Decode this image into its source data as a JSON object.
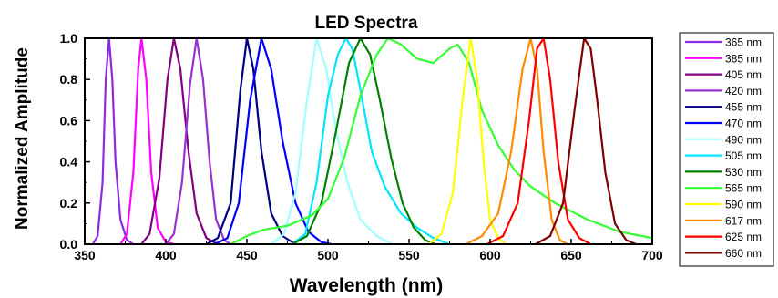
{
  "chart_data": {
    "type": "line",
    "title": "LED Spectra",
    "xlabel": "Wavelength (nm)",
    "ylabel": "Normalized Amplitude",
    "xlim": [
      350,
      700
    ],
    "ylim": [
      0.0,
      1.0
    ],
    "x_ticks": [
      "350",
      "400",
      "450",
      "500",
      "550",
      "600",
      "650",
      "700"
    ],
    "y_ticks": [
      "0.0",
      "0.2",
      "0.4",
      "0.6",
      "0.8",
      "1.0"
    ],
    "grid": false,
    "legend_position": "right, outside plot",
    "series": [
      {
        "name": "365 nm",
        "color": "#8a2be2",
        "points": [
          [
            355,
            0
          ],
          [
            358,
            0.04
          ],
          [
            361,
            0.3
          ],
          [
            363,
            0.8
          ],
          [
            365,
            1.0
          ],
          [
            367,
            0.8
          ],
          [
            369,
            0.4
          ],
          [
            372,
            0.12
          ],
          [
            376,
            0.02
          ],
          [
            380,
            0
          ]
        ]
      },
      {
        "name": "385 nm",
        "color": "#ff00ff",
        "points": [
          [
            372,
            0
          ],
          [
            376,
            0.05
          ],
          [
            380,
            0.35
          ],
          [
            383,
            0.85
          ],
          [
            385,
            1.0
          ],
          [
            388,
            0.8
          ],
          [
            391,
            0.35
          ],
          [
            395,
            0.08
          ],
          [
            400,
            0.01
          ],
          [
            405,
            0
          ]
        ]
      },
      {
        "name": "405 nm",
        "color": "#800080",
        "points": [
          [
            385,
            0
          ],
          [
            390,
            0.05
          ],
          [
            396,
            0.32
          ],
          [
            401,
            0.8
          ],
          [
            405,
            1.0
          ],
          [
            409,
            0.85
          ],
          [
            414,
            0.45
          ],
          [
            419,
            0.15
          ],
          [
            425,
            0.03
          ],
          [
            432,
            0
          ]
        ]
      },
      {
        "name": "420 nm",
        "color": "#9932cc",
        "points": [
          [
            400,
            0
          ],
          [
            405,
            0.05
          ],
          [
            410,
            0.3
          ],
          [
            415,
            0.78
          ],
          [
            419,
            1.0
          ],
          [
            423,
            0.8
          ],
          [
            427,
            0.4
          ],
          [
            431,
            0.12
          ],
          [
            436,
            0.02
          ],
          [
            440,
            0
          ]
        ]
      },
      {
        "name": "455 nm",
        "color": "#000080",
        "points": [
          [
            425,
            0
          ],
          [
            432,
            0.03
          ],
          [
            440,
            0.2
          ],
          [
            446,
            0.75
          ],
          [
            450,
            1.0
          ],
          [
            454,
            0.85
          ],
          [
            459,
            0.45
          ],
          [
            465,
            0.15
          ],
          [
            472,
            0.04
          ],
          [
            480,
            0
          ]
        ]
      },
      {
        "name": "470 nm",
        "color": "#0000ff",
        "points": [
          [
            430,
            0
          ],
          [
            438,
            0.03
          ],
          [
            445,
            0.2
          ],
          [
            452,
            0.7
          ],
          [
            459,
            1.0
          ],
          [
            465,
            0.85
          ],
          [
            472,
            0.5
          ],
          [
            480,
            0.2
          ],
          [
            488,
            0.06
          ],
          [
            496,
            0.01
          ],
          [
            502,
            0
          ]
        ]
      },
      {
        "name": "490 nm",
        "color": "#a0ffff",
        "points": [
          [
            465,
            0
          ],
          [
            473,
            0.05
          ],
          [
            480,
            0.25
          ],
          [
            487,
            0.7
          ],
          [
            493,
            1.0
          ],
          [
            499,
            0.85
          ],
          [
            505,
            0.55
          ],
          [
            512,
            0.3
          ],
          [
            520,
            0.12
          ],
          [
            530,
            0.04
          ],
          [
            540,
            0
          ]
        ]
      },
      {
        "name": "505 nm",
        "color": "#00e5ff",
        "points": [
          [
            478,
            0
          ],
          [
            486,
            0.05
          ],
          [
            493,
            0.3
          ],
          [
            500,
            0.72
          ],
          [
            506,
            0.92
          ],
          [
            511,
            1.0
          ],
          [
            515,
            0.95
          ],
          [
            520,
            0.75
          ],
          [
            527,
            0.45
          ],
          [
            535,
            0.28
          ],
          [
            545,
            0.15
          ],
          [
            555,
            0.08
          ],
          [
            565,
            0.03
          ],
          [
            575,
            0
          ]
        ]
      },
      {
        "name": "530 nm",
        "color": "#008000",
        "points": [
          [
            478,
            0
          ],
          [
            487,
            0.04
          ],
          [
            496,
            0.2
          ],
          [
            505,
            0.55
          ],
          [
            513,
            0.88
          ],
          [
            520,
            1.0
          ],
          [
            526,
            0.92
          ],
          [
            532,
            0.7
          ],
          [
            539,
            0.42
          ],
          [
            546,
            0.2
          ],
          [
            553,
            0.08
          ],
          [
            560,
            0.02
          ],
          [
            566,
            0
          ]
        ]
      },
      {
        "name": "565 nm",
        "color": "#33ff33",
        "points": [
          [
            440,
            0
          ],
          [
            450,
            0.04
          ],
          [
            460,
            0.07
          ],
          [
            475,
            0.09
          ],
          [
            490,
            0.14
          ],
          [
            500,
            0.22
          ],
          [
            510,
            0.42
          ],
          [
            520,
            0.72
          ],
          [
            530,
            0.92
          ],
          [
            537,
            1.0
          ],
          [
            545,
            0.97
          ],
          [
            555,
            0.9
          ],
          [
            565,
            0.88
          ],
          [
            575,
            0.95
          ],
          [
            580,
            0.97
          ],
          [
            587,
            0.88
          ],
          [
            595,
            0.65
          ],
          [
            605,
            0.48
          ],
          [
            615,
            0.36
          ],
          [
            625,
            0.28
          ],
          [
            640,
            0.2
          ],
          [
            660,
            0.12
          ],
          [
            680,
            0.06
          ],
          [
            700,
            0.03
          ]
        ]
      },
      {
        "name": "590 nm",
        "color": "#ffff00",
        "points": [
          [
            562,
            0
          ],
          [
            570,
            0.05
          ],
          [
            577,
            0.25
          ],
          [
            583,
            0.7
          ],
          [
            588,
            1.0
          ],
          [
            592,
            0.8
          ],
          [
            596,
            0.4
          ],
          [
            600,
            0.12
          ],
          [
            605,
            0.03
          ],
          [
            610,
            0
          ]
        ]
      },
      {
        "name": "617 nm",
        "color": "#ff8c00",
        "points": [
          [
            585,
            0
          ],
          [
            595,
            0.04
          ],
          [
            605,
            0.15
          ],
          [
            613,
            0.45
          ],
          [
            620,
            0.85
          ],
          [
            625,
            1.0
          ],
          [
            629,
            0.85
          ],
          [
            633,
            0.45
          ],
          [
            638,
            0.12
          ],
          [
            643,
            0.02
          ],
          [
            648,
            0
          ]
        ]
      },
      {
        "name": "625 nm",
        "color": "#ff0000",
        "points": [
          [
            598,
            0
          ],
          [
            608,
            0.04
          ],
          [
            617,
            0.2
          ],
          [
            624,
            0.6
          ],
          [
            629,
            0.95
          ],
          [
            633,
            1.0
          ],
          [
            637,
            0.8
          ],
          [
            642,
            0.4
          ],
          [
            648,
            0.12
          ],
          [
            655,
            0.03
          ],
          [
            662,
            0
          ]
        ]
      },
      {
        "name": "660 nm",
        "color": "#800000",
        "points": [
          [
            628,
            0
          ],
          [
            637,
            0.04
          ],
          [
            645,
            0.2
          ],
          [
            652,
            0.65
          ],
          [
            658,
            1.0
          ],
          [
            662,
            0.95
          ],
          [
            666,
            0.7
          ],
          [
            671,
            0.35
          ],
          [
            677,
            0.1
          ],
          [
            684,
            0.02
          ],
          [
            690,
            0
          ]
        ]
      }
    ]
  }
}
